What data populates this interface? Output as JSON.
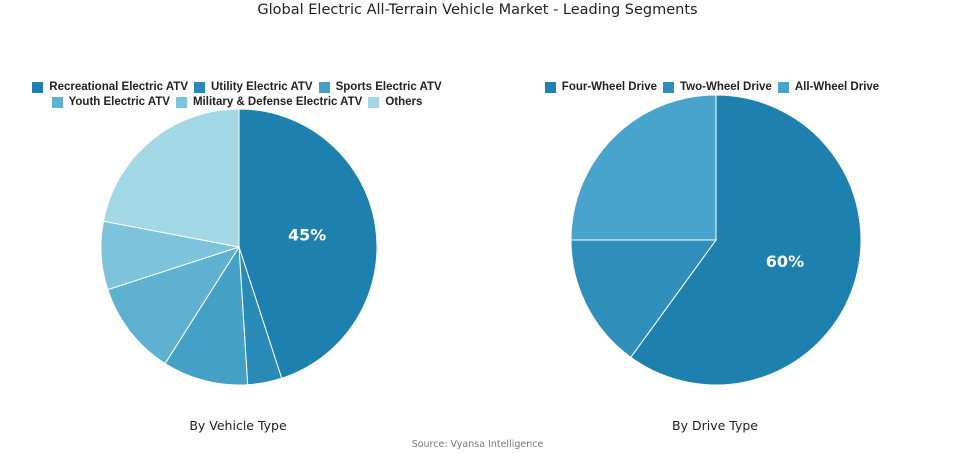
{
  "title": "Global Electric All-Terrain Vehicle Market - Leading Segments",
  "source": "Source: Vyansa Intelligence",
  "chart_data": [
    {
      "type": "pie",
      "caption": "By Vehicle Type",
      "legend_position": "top",
      "slices": [
        {
          "label": "Recreational Electric ATV",
          "value": 45,
          "color": "#1d80ae",
          "show_label": "45%"
        },
        {
          "label": "Utility Electric ATV",
          "value": 4,
          "color": "#2a8ab7",
          "show_label": ""
        },
        {
          "label": "Sports Electric ATV",
          "value": 10,
          "color": "#45a0c6",
          "show_label": ""
        },
        {
          "label": "Youth Electric ATV",
          "value": 11,
          "color": "#5eb1d1",
          "show_label": ""
        },
        {
          "label": "Military & Defense Electric ATV",
          "value": 8,
          "color": "#7cc3db",
          "show_label": ""
        },
        {
          "label": "Others",
          "value": 22,
          "color": "#a2d7e6",
          "show_label": ""
        }
      ]
    },
    {
      "type": "pie",
      "caption": "By Drive Type",
      "legend_position": "top",
      "slices": [
        {
          "label": "Four-Wheel Drive",
          "value": 60,
          "color": "#1d80ae",
          "show_label": "60%"
        },
        {
          "label": "Two-Wheel Drive",
          "value": 15,
          "color": "#2f8fba",
          "show_label": ""
        },
        {
          "label": "All-Wheel Drive",
          "value": 25,
          "color": "#48a4ca",
          "show_label": ""
        }
      ]
    }
  ]
}
